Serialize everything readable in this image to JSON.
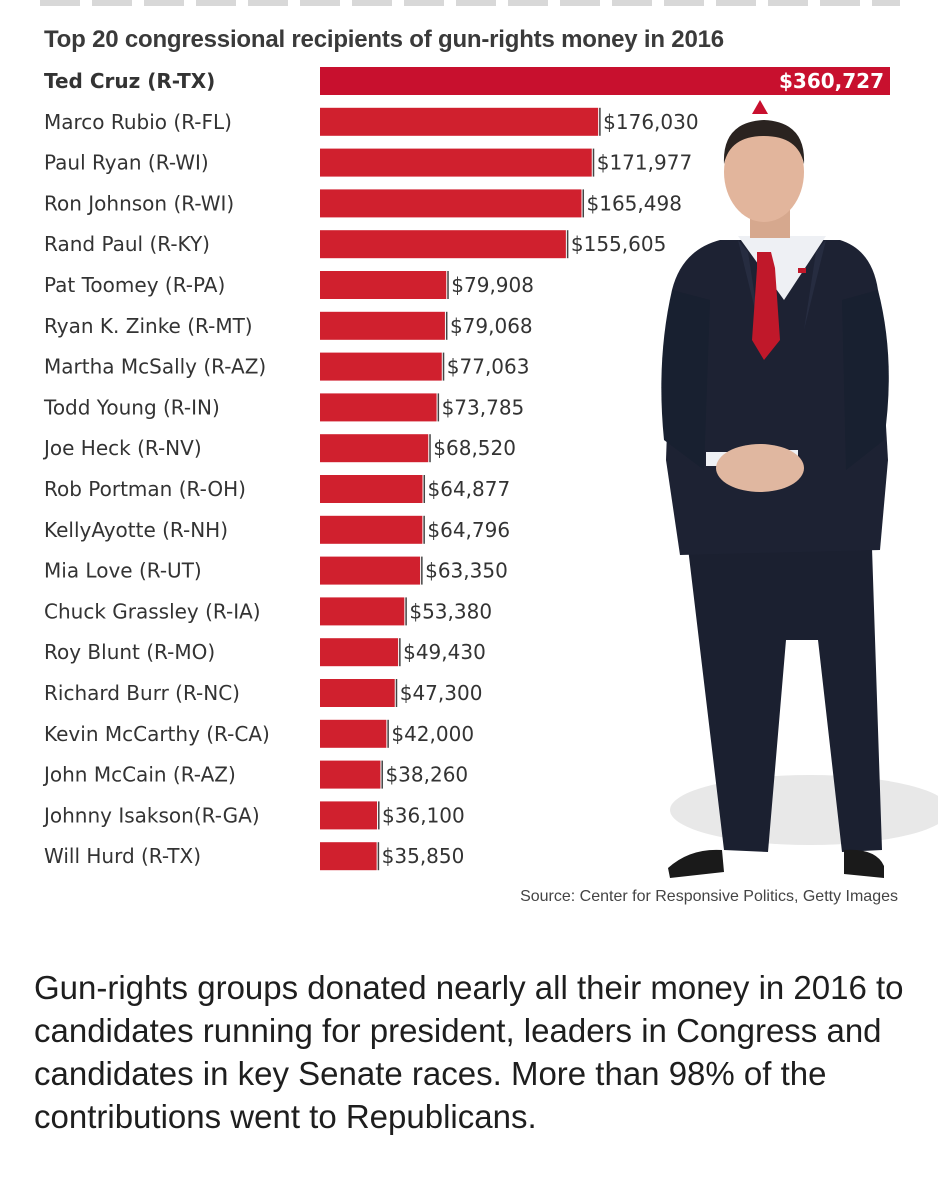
{
  "chart_data": {
    "type": "bar",
    "orientation": "horizontal",
    "title": "Top 20 congressional recipients of gun-rights money in 2016",
    "categories": [
      "Ted Cruz (R-TX)",
      "Marco Rubio (R-FL)",
      "Paul Ryan (R-WI)",
      "Ron Johnson (R-WI)",
      "Rand Paul (R-KY)",
      "Pat Toomey (R-PA)",
      "Ryan K. Zinke (R-MT)",
      "Martha McSally (R-AZ)",
      "Todd Young (R-IN)",
      "Joe Heck (R-NV)",
      "Rob Portman (R-OH)",
      "KellyAyotte (R-NH)",
      "Mia Love (R-UT)",
      "Chuck Grassley (R-IA)",
      "Roy Blunt (R-MO)",
      "Richard Burr (R-NC)",
      "Kevin McCarthy (R-CA)",
      "John McCain (R-AZ)",
      "Johnny  Isakson(R-GA)",
      "Will Hurd (R-TX)"
    ],
    "values": [
      360727,
      176030,
      171977,
      165498,
      155605,
      79908,
      79068,
      77063,
      73785,
      68520,
      64877,
      64796,
      63350,
      53380,
      49430,
      47300,
      42000,
      38260,
      36100,
      35850
    ],
    "value_labels": [
      "$360,727",
      "$176,030",
      "$171,977",
      "$165,498",
      "$155,605",
      "$79,908",
      "$79,068",
      "$77,063",
      "$73,785",
      "$68,520",
      "$64,877",
      "$64,796",
      "$63,350",
      "$53,380",
      "$49,430",
      "$47,300",
      "$42,000",
      "$38,260",
      "$36,100",
      "$35,850"
    ],
    "highlighted_category": "Ted Cruz (R-TX)",
    "xlim": [
      0,
      360727
    ],
    "grid": false,
    "legend": "none",
    "colors": {
      "bar": "#d0202e",
      "top_bar": "#c8102e"
    }
  },
  "source": "Source: Center for Responsive Politics, Getty Images",
  "caption": "Gun-rights groups donated nearly all their money in 2016 to candidates running for president, leaders in Congress and candidates in key Senate races. More than 98% of the contributions went to Republicans.",
  "icons": {
    "pointer": "triangle-up-icon",
    "photo": "ted-cruz-standing-photo"
  },
  "colors": {
    "title": "#3a3a3a",
    "text": "#333333",
    "suit": "#1d2233",
    "tie": "#c0182a"
  }
}
